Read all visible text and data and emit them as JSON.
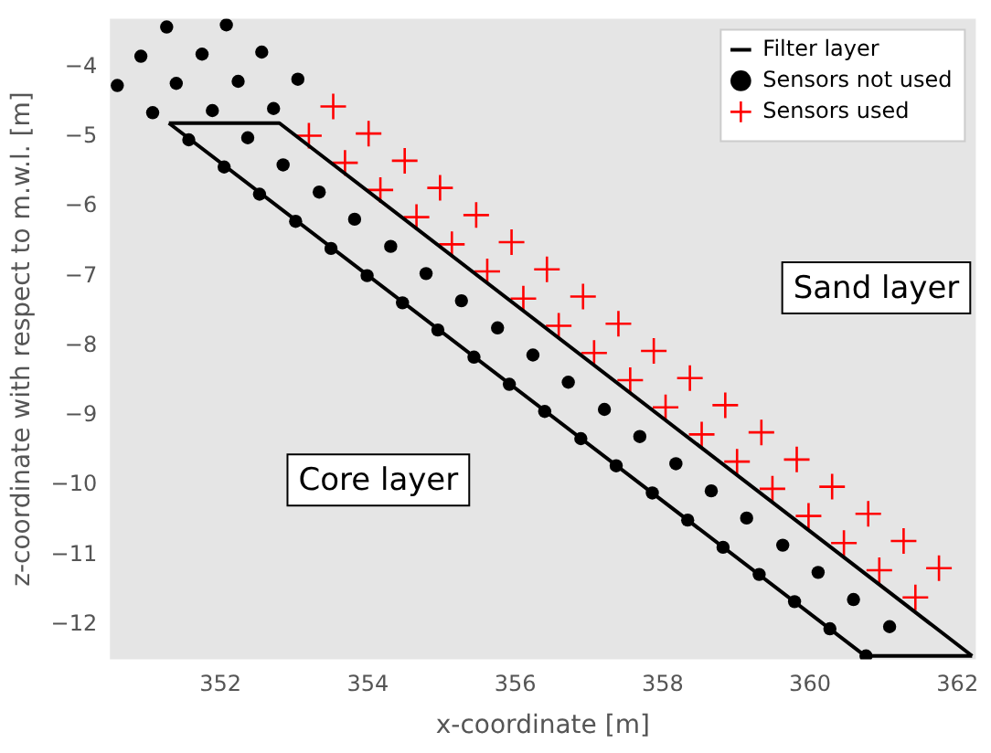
{
  "chart_data": {
    "type": "scatter",
    "xlabel": "x-coordinate [m]",
    "ylabel": "z-coordinate with respect to m.w.l. [m]",
    "xlim": [
      350.5,
      362.25
    ],
    "xticks": [
      352,
      354,
      356,
      358,
      360,
      362
    ],
    "ylim": [
      -12.5,
      -3.3
    ],
    "yticks": [
      -4,
      -5,
      -6,
      -7,
      -8,
      -9,
      -10,
      -11,
      -12
    ],
    "grid": false,
    "legend": "top right",
    "annotations": [
      "Sand layer",
      "Core layer"
    ],
    "series": [
      {
        "name": "Filter layer",
        "type": "line",
        "marker": "none",
        "line_style": "solid",
        "color": "#000000",
        "x": [
          351.3,
          352.8,
          362.2
        ],
        "values": [
          -4.8,
          -4.8,
          -12.45
        ]
      },
      {
        "type": "line",
        "marker": "none",
        "line_style": "solid",
        "color": "#000000",
        "x": [
          351.3,
          360.75,
          362.2
        ],
        "values": [
          -4.8,
          -12.45,
          -12.45
        ]
      },
      {
        "name": "Sensors not used",
        "type": "scatter",
        "marker": "circle",
        "color": "#000000",
        "x": [
          350.6,
          351.08,
          351.57,
          352.05,
          352.53,
          353.02,
          353.5,
          353.99,
          354.47,
          354.95,
          355.44,
          355.92,
          356.4,
          356.89,
          357.37,
          357.86,
          358.34,
          358.82,
          359.31,
          359.79,
          360.27,
          360.76,
          350.92,
          351.4,
          351.89,
          352.37,
          352.85,
          353.34,
          353.82,
          354.31,
          354.79,
          355.27,
          355.76,
          356.24,
          356.72,
          357.21,
          357.69,
          358.18,
          358.66,
          359.14,
          359.63,
          360.11,
          360.59,
          361.08,
          351.27,
          351.75,
          352.24,
          352.72,
          352.08,
          352.56,
          353.05
        ],
        "values": [
          -4.26,
          -4.65,
          -5.04,
          -5.43,
          -5.82,
          -6.21,
          -6.6,
          -6.99,
          -7.38,
          -7.77,
          -8.16,
          -8.55,
          -8.94,
          -9.33,
          -9.72,
          -10.11,
          -10.5,
          -10.89,
          -11.28,
          -11.67,
          -12.06,
          -12.45,
          -3.84,
          -4.23,
          -4.62,
          -5.01,
          -5.4,
          -5.79,
          -6.18,
          -6.57,
          -6.96,
          -7.35,
          -7.74,
          -8.13,
          -8.52,
          -8.91,
          -9.3,
          -9.69,
          -10.08,
          -10.47,
          -10.86,
          -11.25,
          -11.64,
          -12.03,
          -3.42,
          -3.81,
          -4.2,
          -4.59,
          -3.39,
          -3.78,
          -4.17
        ]
      },
      {
        "name": "Sensors used",
        "type": "scatter",
        "marker": "cross",
        "color": "#ff0000",
        "x": [
          353.2,
          353.69,
          354.17,
          354.66,
          355.14,
          355.62,
          356.11,
          356.59,
          357.07,
          357.56,
          358.04,
          358.53,
          359.01,
          359.49,
          359.98,
          360.46,
          360.94,
          361.43,
          353.53,
          354.01,
          354.5,
          354.98,
          355.47,
          355.95,
          356.43,
          356.92,
          357.4,
          357.88,
          358.37,
          358.85,
          359.34,
          359.82,
          360.3,
          360.79,
          361.27,
          361.75
        ],
        "values": [
          -4.98,
          -5.37,
          -5.76,
          -6.15,
          -6.54,
          -6.93,
          -7.32,
          -7.71,
          -8.1,
          -8.49,
          -8.88,
          -9.27,
          -9.66,
          -10.05,
          -10.44,
          -10.83,
          -11.22,
          -11.61,
          -4.56,
          -4.95,
          -5.34,
          -5.73,
          -6.12,
          -6.51,
          -6.9,
          -7.29,
          -7.68,
          -8.07,
          -8.46,
          -8.85,
          -9.24,
          -9.63,
          -10.02,
          -10.41,
          -10.8,
          -11.19
        ]
      }
    ]
  }
}
